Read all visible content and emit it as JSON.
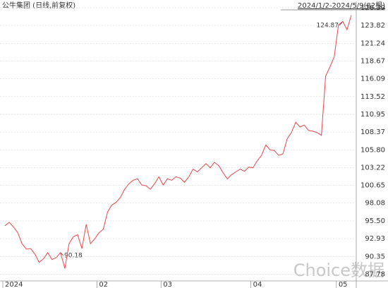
{
  "chart_data": {
    "type": "line",
    "title": "公牛集团 (日线,前复权)",
    "range_label": "2024/1/2-2024/5/9(82根)",
    "annotations": [
      "124.87",
      "90.18"
    ],
    "watermark": "Choice数据",
    "categories": [
      "2024",
      null,
      null,
      null,
      null,
      null,
      null,
      null,
      null,
      null,
      null,
      null,
      null,
      null,
      null,
      null,
      null,
      null,
      null,
      null,
      null,
      null,
      "02",
      null,
      null,
      null,
      null,
      null,
      null,
      null,
      null,
      null,
      null,
      null,
      null,
      null,
      null,
      "03",
      null,
      null,
      null,
      null,
      null,
      null,
      null,
      null,
      null,
      null,
      null,
      null,
      null,
      null,
      null,
      null,
      null,
      null,
      null,
      null,
      "04",
      null,
      null,
      null,
      null,
      null,
      null,
      null,
      null,
      null,
      null,
      null,
      null,
      null,
      null,
      null,
      null,
      null,
      null,
      null,
      "05",
      null,
      null,
      null
    ],
    "series": [
      {
        "name": "公牛集团",
        "color": "#e8474c",
        "values": [
          94.8,
          95.3,
          94.6,
          93.8,
          92.2,
          91.4,
          91.5,
          90.7,
          89.5,
          90.0,
          90.9,
          89.9,
          90.2,
          90.9,
          88.6,
          92.2,
          93.2,
          93.5,
          91.5,
          95.0,
          92.2,
          92.9,
          93.8,
          94.3,
          96.8,
          97.8,
          98.2,
          98.9,
          100.1,
          100.9,
          101.4,
          101.6,
          100.7,
          100.6,
          100.1,
          100.9,
          101.9,
          100.7,
          101.6,
          101.4,
          101.9,
          101.7,
          101.1,
          101.9,
          103.0,
          102.6,
          103.2,
          103.8,
          103.2,
          104.0,
          103.5,
          102.5,
          101.6,
          102.2,
          102.6,
          103.0,
          102.7,
          103.3,
          103.2,
          104.2,
          105.0,
          106.5,
          105.8,
          105.7,
          105.0,
          105.2,
          107.4,
          108.3,
          109.8,
          109.1,
          109.4,
          108.6,
          108.5,
          108.3,
          107.9,
          116.5,
          117.8,
          119.3,
          123.9,
          124.4,
          123.2,
          125.3
        ]
      }
    ],
    "ylim": [
      86.8,
      127.0
    ],
    "yticks": [
      126.39,
      123.82,
      121.24,
      118.67,
      116.09,
      113.52,
      110.95,
      108.37,
      {
        "value": 105.8,
        "label": "105.80"
      },
      103.22,
      100.65,
      98.08,
      {
        "value": 95.5,
        "label": "95.50"
      },
      92.93,
      90.35,
      87.78
    ],
    "grid": true
  }
}
